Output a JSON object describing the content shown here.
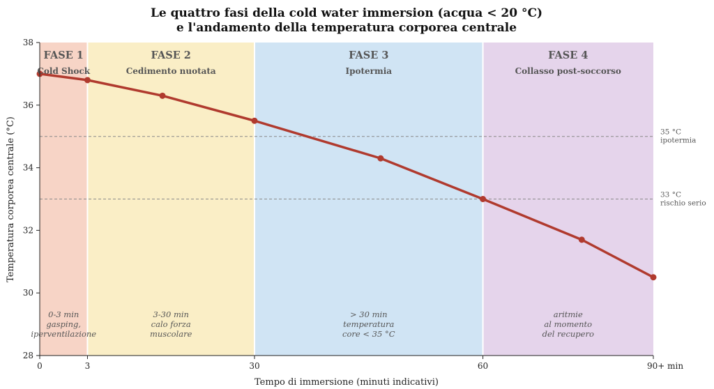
{
  "chart_data": {
    "type": "line",
    "title_line1": "Le quattro fasi della cold water immersion (acqua < 20 °C)",
    "title_line2": "e l'andamento della temperatura corporea centrale",
    "xlabel": "Tempo di immersione (minuti indicativi)",
    "ylabel": "Temperatura corporea centrale (°C)",
    "xlim": [
      0,
      90
    ],
    "ylim": [
      28,
      38
    ],
    "xticks": [
      {
        "value": 0,
        "label": "0"
      },
      {
        "value": 7,
        "label": "3"
      },
      {
        "value": 31.5,
        "label": "30"
      },
      {
        "value": 65,
        "label": "60"
      },
      {
        "value": 90,
        "label": "90+ min"
      }
    ],
    "yticks": [
      28,
      30,
      32,
      34,
      36,
      38
    ],
    "phases": [
      {
        "name": "FASE 1",
        "subtitle": "Cold Shock",
        "note": [
          "0-3 min",
          "gasping,",
          "iperventilazione"
        ],
        "start": 0,
        "end": 7,
        "color": "#f7d4c6"
      },
      {
        "name": "FASE 2",
        "subtitle": "Cedimento nuotata",
        "note": [
          "3-30 min",
          "calo forza",
          "muscolare"
        ],
        "start": 7,
        "end": 31.5,
        "color": "#faeec6"
      },
      {
        "name": "FASE 3",
        "subtitle": "Ipotermia",
        "note": [
          "> 30 min",
          "temperatura",
          "core < 35 °C"
        ],
        "start": 31.5,
        "end": 65,
        "color": "#d0e4f4"
      },
      {
        "name": "FASE 4",
        "subtitle": "Collasso post-soccorso",
        "note": [
          "aritmie",
          "al momento",
          "del recupero"
        ],
        "start": 65,
        "end": 90,
        "color": "#e5d4eb"
      }
    ],
    "reference_lines": [
      {
        "y": 35,
        "label": [
          "35 °C",
          "ipotermia"
        ]
      },
      {
        "y": 33,
        "label": [
          "33 °C",
          "rischio serio"
        ]
      }
    ],
    "series": [
      {
        "color": "#b03a2e",
        "x": [
          0,
          7,
          18,
          31.5,
          50,
          65,
          79.5,
          90
        ],
        "y": [
          37.0,
          36.8,
          36.3,
          35.5,
          34.3,
          33.0,
          31.7,
          30.5
        ],
        "markers": [
          0,
          7,
          18,
          31.5,
          50,
          65,
          79.5,
          90
        ]
      }
    ],
    "grid": false,
    "legend": "none"
  }
}
